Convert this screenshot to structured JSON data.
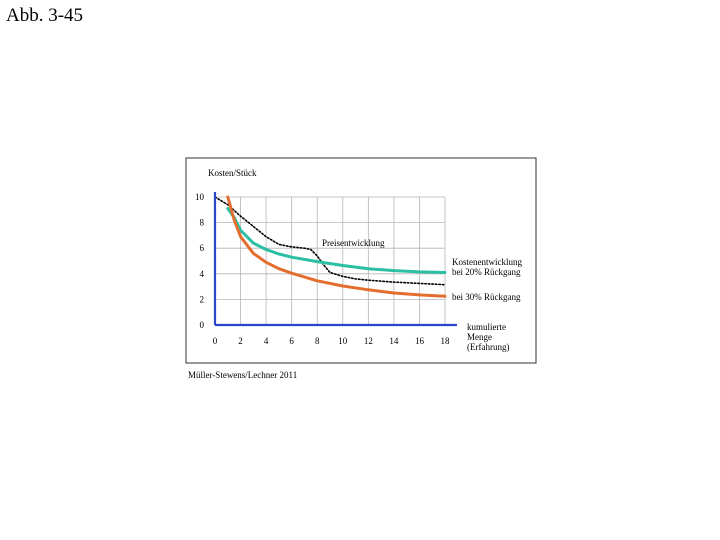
{
  "page": {
    "title": "Abb. 3-45"
  },
  "figure": {
    "source": "Müller-Stewens/Lechner 2011"
  },
  "chart_data": {
    "type": "line",
    "title": "",
    "ylabel": "Kosten/Stück",
    "xlabel": [
      "kumulierte",
      "Menge",
      "(Erfahrung)"
    ],
    "xlim": [
      0,
      18
    ],
    "ylim": [
      0,
      10
    ],
    "x_ticks": [
      0,
      2,
      4,
      6,
      8,
      10,
      12,
      14,
      16,
      18
    ],
    "y_ticks": [
      0,
      2,
      4,
      6,
      8,
      10
    ],
    "grid": true,
    "legend": "inline-labels",
    "series": [
      {
        "name": "Preisentwicklung",
        "style": "dotted",
        "color": "#000000",
        "x": [
          0,
          1,
          2,
          3,
          4,
          5,
          6,
          7,
          7.5,
          8,
          8.5,
          9,
          10,
          11,
          12,
          14,
          16,
          18
        ],
        "y": [
          10,
          9.4,
          8.5,
          7.7,
          6.9,
          6.3,
          6.1,
          6.0,
          5.9,
          5.4,
          4.7,
          4.1,
          3.8,
          3.6,
          3.5,
          3.35,
          3.25,
          3.15
        ]
      },
      {
        "name": "Kostenentwicklung bei 20% Rückgang",
        "style": "solid",
        "color": "#2bbfa4",
        "x": [
          1,
          1.5,
          2,
          3,
          4,
          5,
          6,
          8,
          10,
          12,
          14,
          16,
          18
        ],
        "y": [
          9.1,
          8.4,
          7.4,
          6.4,
          5.9,
          5.55,
          5.3,
          4.95,
          4.65,
          4.4,
          4.25,
          4.15,
          4.1
        ]
      },
      {
        "name": "bei 30% Rückgang",
        "style": "solid",
        "color": "#e46e2e",
        "x": [
          1,
          1.5,
          2,
          3,
          4,
          5,
          6,
          8,
          10,
          12,
          14,
          16,
          18
        ],
        "y": [
          10,
          8.2,
          6.9,
          5.6,
          4.9,
          4.4,
          4.05,
          3.45,
          3.05,
          2.75,
          2.5,
          2.35,
          2.25
        ]
      }
    ],
    "series_labels": {
      "Preisentwicklung": [
        "Preisentwicklung"
      ],
      "Kostenentwicklung bei 20% Rückgang": [
        "Kostenentwicklung",
        "bei 20% Rückgang"
      ],
      "bei 30% Rückgang": [
        "bei 30% Rückgang"
      ]
    },
    "colors": {
      "axis": "#2b47c9",
      "grid": "#b5b5b5",
      "frame": "#333333"
    }
  }
}
